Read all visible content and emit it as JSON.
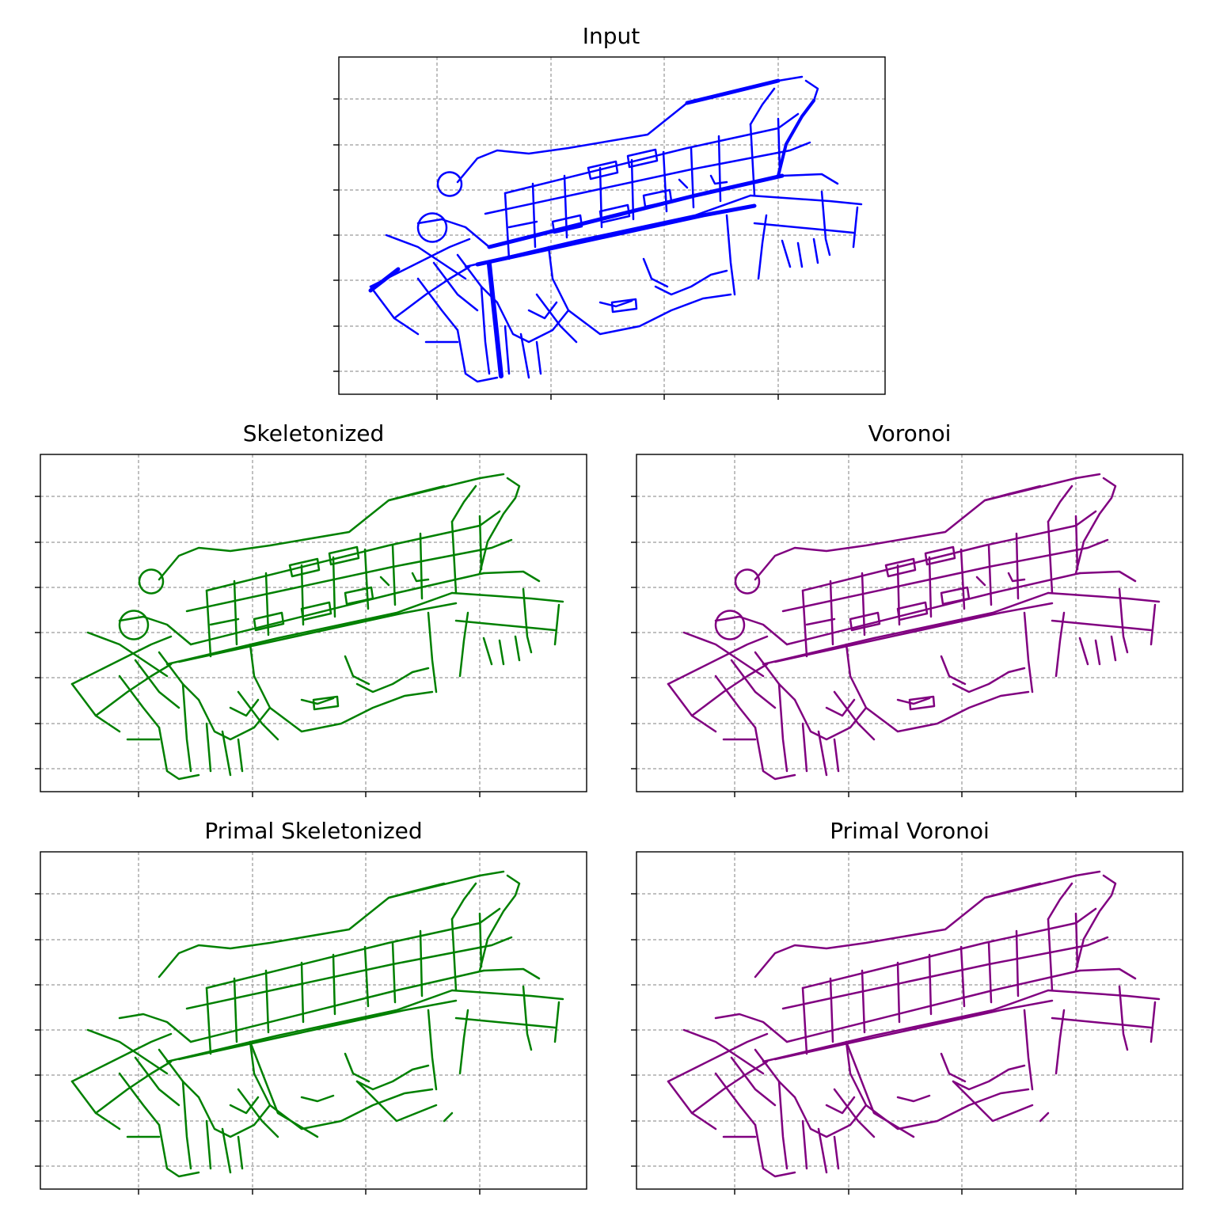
{
  "figure": {
    "panels": [
      {
        "id": "input",
        "title": "Input",
        "color": "#0000ff"
      },
      {
        "id": "skeletonized",
        "title": "Skeletonized",
        "color": "#008000"
      },
      {
        "id": "voronoi",
        "title": "Voronoi",
        "color": "#800080"
      },
      {
        "id": "primal-skeletonized",
        "title": "Primal Skeletonized",
        "color": "#008000"
      },
      {
        "id": "primal-voronoi",
        "title": "Primal Voronoi",
        "color": "#800080"
      }
    ],
    "grid": true,
    "tick_labels_shown": false
  }
}
